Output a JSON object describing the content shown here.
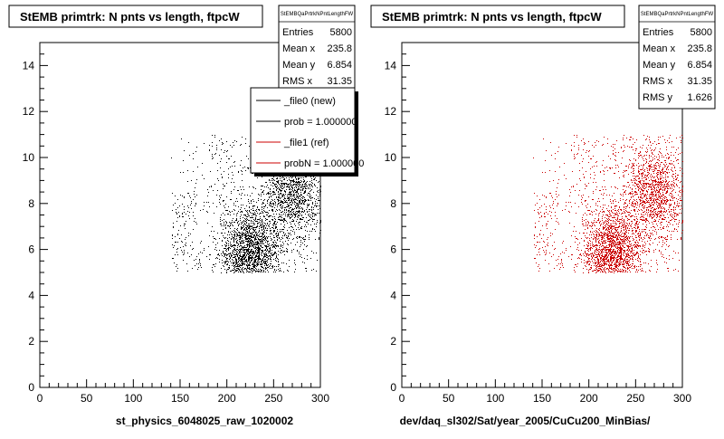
{
  "chart_data": [
    {
      "type": "scatter",
      "title": "StEMB primtrk: N pnts vs length, ftpcW",
      "stats_box_title": "StEMBQaPrtrkNPntLengthFW",
      "stats": [
        {
          "label": "Entries",
          "value": "5800"
        },
        {
          "label": "Mean x",
          "value": "235.8"
        },
        {
          "label": "Mean y",
          "value": "6.854"
        },
        {
          "label": "RMS x",
          "value": "31.35"
        }
      ],
      "legend": [
        {
          "label": "_file0 (new)",
          "color": "#000000"
        },
        {
          "label": "prob = 1.000000",
          "color": "#000000"
        },
        {
          "label": "_file1 (ref)",
          "color": "#cc0000"
        },
        {
          "label": "probN = 1.000000",
          "color": "#cc0000"
        }
      ],
      "xlabel": "st_physics_6048025_raw_1020002",
      "ylabel": "",
      "xlim": [
        0,
        300
      ],
      "ylim": [
        0,
        15
      ],
      "xticks": [
        "0",
        "50",
        "100",
        "150",
        "200",
        "250",
        "300"
      ],
      "yticks": [
        "0",
        "2",
        "4",
        "6",
        "8",
        "10",
        "12",
        "14"
      ],
      "point_color": "#000000",
      "entries": 5800,
      "x_range": [
        140,
        300
      ],
      "y_range": [
        5,
        11
      ],
      "dense_regions": [
        {
          "x": 225,
          "y": 6,
          "weight": 0.45
        },
        {
          "x": 270,
          "y": 8.5,
          "weight": 0.3
        }
      ]
    },
    {
      "type": "scatter",
      "title": "StEMB primtrk: N pnts vs length, ftpcW",
      "stats_box_title": "StEMBQaPrtrkNPntLengthFW",
      "stats": [
        {
          "label": "Entries",
          "value": "5800"
        },
        {
          "label": "Mean x",
          "value": "235.8"
        },
        {
          "label": "Mean y",
          "value": "6.854"
        },
        {
          "label": "RMS x",
          "value": "31.35"
        },
        {
          "label": "RMS y",
          "value": "1.626"
        }
      ],
      "xlabel": "dev/daq_sl302/Sat/year_2005/CuCu200_MinBias/",
      "ylabel": "",
      "xlim": [
        0,
        300
      ],
      "ylim": [
        0,
        15
      ],
      "xticks": [
        "0",
        "50",
        "100",
        "150",
        "200",
        "250",
        "300"
      ],
      "yticks": [
        "0",
        "2",
        "4",
        "6",
        "8",
        "10",
        "12",
        "14"
      ],
      "point_color": "#cc0000",
      "entries": 5800,
      "x_range": [
        140,
        300
      ],
      "y_range": [
        5,
        11
      ],
      "dense_regions": [
        {
          "x": 225,
          "y": 6,
          "weight": 0.45
        },
        {
          "x": 270,
          "y": 8.5,
          "weight": 0.3
        }
      ]
    }
  ]
}
